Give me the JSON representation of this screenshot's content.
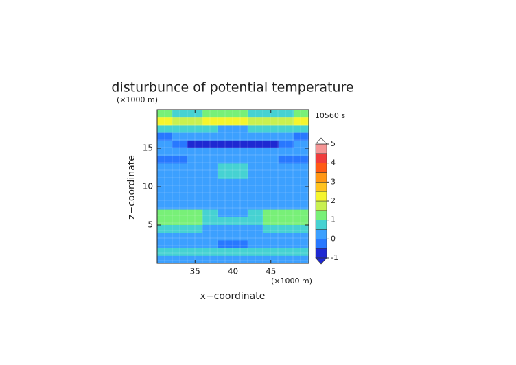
{
  "chart_data": {
    "type": "contour",
    "title": "disturbunce of potential temperature",
    "time_label": "10560 s",
    "x_label": "x−coordinate",
    "y_label": "z−coordinate",
    "x_unit": "(×1000 m)",
    "y_unit": "(×1000 m)",
    "xlim": [
      30,
      50
    ],
    "ylim": [
      0,
      20
    ],
    "xticks": [
      35,
      40,
      45
    ],
    "yticks": [
      5,
      10,
      15
    ],
    "x": [
      31,
      33,
      35,
      37,
      39,
      41,
      43,
      45,
      47,
      49
    ],
    "y": [
      19.5,
      18.5,
      17.5,
      16.5,
      15.5,
      14.5,
      13.5,
      12.5,
      11.5,
      10.5,
      9.5,
      8.5,
      7.5,
      6.5,
      5.5,
      4.5,
      3.5,
      2.5,
      1.5,
      0.5
    ],
    "z": [
      [
        1.2,
        0.8,
        0.8,
        1.2,
        1.2,
        1.2,
        0.8,
        0.8,
        0.8,
        1.2
      ],
      [
        2.2,
        1.5,
        1.7,
        2.2,
        2.2,
        2.2,
        1.7,
        1.5,
        1.7,
        2.2
      ],
      [
        0.7,
        0.7,
        0.7,
        0.7,
        0.3,
        0.3,
        0.7,
        0.7,
        0.7,
        0.7
      ],
      [
        -0.2,
        0.2,
        0.2,
        0.2,
        0.2,
        0.2,
        0.2,
        0.2,
        0.2,
        -0.2
      ],
      [
        0.2,
        -0.2,
        -0.6,
        -0.7,
        -0.7,
        -0.7,
        -0.7,
        -0.6,
        -0.2,
        0.2
      ],
      [
        0.2,
        0.2,
        0.2,
        0.2,
        0.2,
        0.2,
        0.2,
        0.2,
        0.2,
        0.2
      ],
      [
        -0.3,
        -0.3,
        0.2,
        0.2,
        0.2,
        0.2,
        0.2,
        0.2,
        -0.3,
        -0.3
      ],
      [
        0.2,
        0.2,
        0.2,
        0.3,
        0.7,
        0.7,
        0.3,
        0.2,
        0.2,
        0.2
      ],
      [
        0.2,
        0.2,
        0.2,
        0.2,
        0.7,
        0.7,
        0.2,
        0.2,
        0.2,
        0.2
      ],
      [
        0.2,
        0.2,
        0.2,
        0.2,
        0.2,
        0.2,
        0.2,
        0.2,
        0.2,
        0.2
      ],
      [
        0.2,
        0.2,
        0.2,
        0.2,
        0.2,
        0.2,
        0.2,
        0.2,
        0.2,
        0.2
      ],
      [
        0.2,
        0.2,
        0.2,
        0.2,
        0.2,
        0.2,
        0.2,
        0.2,
        0.2,
        0.2
      ],
      [
        0.2,
        0.2,
        0.2,
        0.2,
        0.2,
        0.2,
        0.2,
        0.2,
        0.2,
        0.2
      ],
      [
        1.2,
        1.2,
        1.2,
        0.7,
        0.2,
        0.2,
        0.7,
        1.2,
        1.2,
        1.2
      ],
      [
        1.2,
        1.2,
        1.2,
        0.7,
        0.7,
        0.7,
        0.7,
        1.2,
        1.2,
        1.2
      ],
      [
        0.7,
        0.7,
        0.7,
        0.2,
        0.2,
        0.2,
        0.2,
        0.7,
        0.7,
        0.7
      ],
      [
        0.2,
        0.2,
        0.2,
        0.2,
        0.2,
        0.2,
        0.2,
        0.2,
        0.2,
        0.2
      ],
      [
        0.2,
        0.2,
        0.2,
        0.2,
        -0.2,
        -0.2,
        0.2,
        0.2,
        0.2,
        0.2
      ],
      [
        0.7,
        0.7,
        0.7,
        0.7,
        0.7,
        0.7,
        0.7,
        0.7,
        0.7,
        0.7
      ],
      [
        0.2,
        0.2,
        0.2,
        0.2,
        0.2,
        0.2,
        0.2,
        0.2,
        0.2,
        0.2
      ]
    ],
    "levels": [
      -1,
      -0.5,
      0,
      0.5,
      1,
      1.5,
      2,
      2.5,
      3,
      3.5,
      4,
      4.5,
      5
    ],
    "colors": [
      "#1e28d2",
      "#2878ff",
      "#3ca0ff",
      "#46d2d2",
      "#78f078",
      "#c8f050",
      "#f5f52d",
      "#ffc31e",
      "#ff9614",
      "#ff5a14",
      "#f03c3c",
      "#f59696"
    ],
    "over_color": "#ffffff",
    "under_color": "#1e28d2",
    "cbar_ticks": [
      -1,
      0,
      1,
      2,
      3,
      4,
      5
    ]
  }
}
